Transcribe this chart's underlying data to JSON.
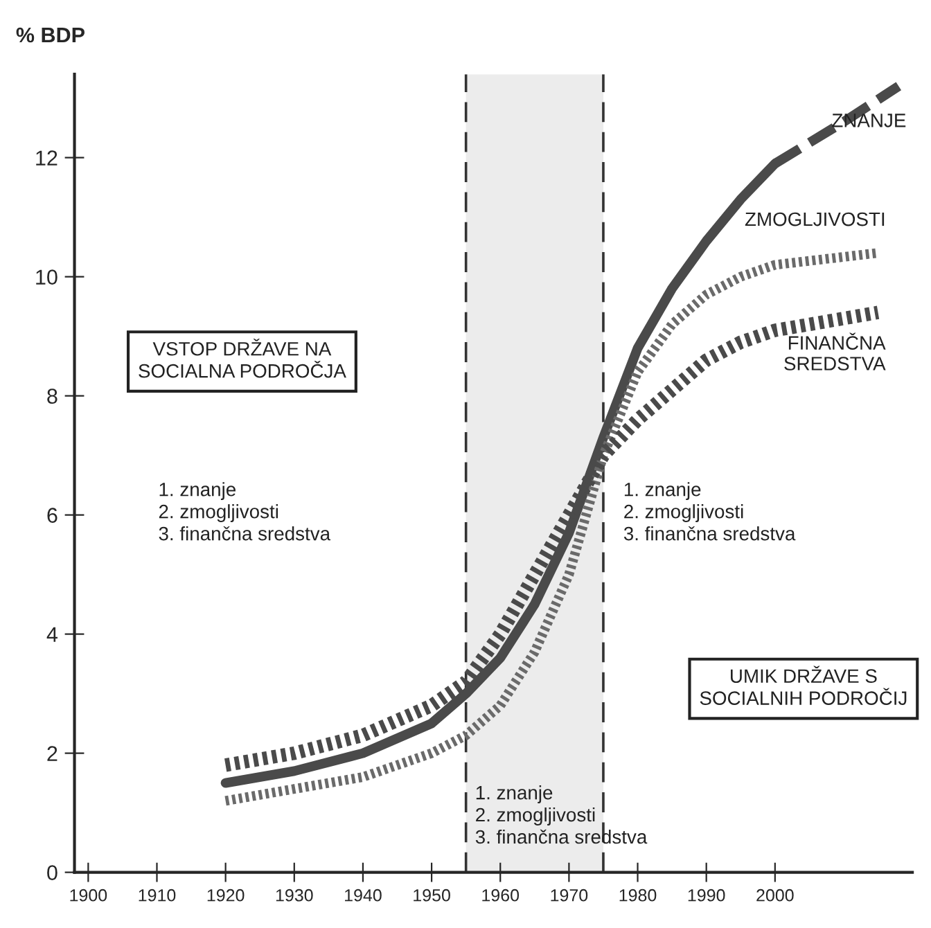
{
  "chart_data": {
    "type": "line",
    "ylabel": "% BDP",
    "xlim": [
      1898,
      2020
    ],
    "ylim": [
      0,
      13.4
    ],
    "xticks": [
      1900,
      1910,
      1920,
      1930,
      1940,
      1950,
      1960,
      1970,
      1980,
      1990,
      2000
    ],
    "yticks": [
      0,
      2,
      4,
      6,
      8,
      10,
      12
    ],
    "grid": false,
    "legend": false,
    "series": [
      {
        "color": "#4a4a4a",
        "line_style": "solid",
        "x": [
          1920,
          1930,
          1940,
          1950,
          1955,
          1960,
          1965,
          1970,
          1975,
          1980,
          1985,
          1990,
          1995,
          2000
        ],
        "values": [
          1.5,
          1.7,
          2.0,
          2.5,
          3.0,
          3.6,
          4.5,
          5.7,
          7.3,
          8.8,
          9.8,
          10.6,
          11.3,
          11.9
        ]
      },
      {
        "name": "ZNANJE",
        "color": "#4a4a4a",
        "line_style": "dashed",
        "x": [
          2000,
          2010,
          2018
        ],
        "values": [
          11.9,
          12.6,
          13.2
        ]
      },
      {
        "name": "ZMOGLJIVOSTI",
        "color": "#6a6a6a",
        "line_style": "dotted",
        "x": [
          1920,
          1930,
          1940,
          1950,
          1955,
          1960,
          1965,
          1970,
          1975,
          1980,
          1985,
          1990,
          1995,
          2000,
          2015
        ],
        "values": [
          1.2,
          1.4,
          1.6,
          2.0,
          2.3,
          2.8,
          3.7,
          5.0,
          7.0,
          8.4,
          9.2,
          9.7,
          10.0,
          10.2,
          10.4
        ]
      },
      {
        "name": "FINANČNA\nSREDSTVA",
        "color": "#4a4a4a",
        "line_style": "dotted",
        "x": [
          1920,
          1930,
          1940,
          1950,
          1955,
          1960,
          1965,
          1970,
          1975,
          1980,
          1985,
          1990,
          1995,
          2000,
          2015
        ],
        "values": [
          1.8,
          2.0,
          2.3,
          2.8,
          3.2,
          4.0,
          5.0,
          6.0,
          7.0,
          7.6,
          8.1,
          8.6,
          8.9,
          9.1,
          9.4
        ]
      }
    ],
    "bands": [
      {
        "axis": "x",
        "from": 1955,
        "to": 1975,
        "color": "#ececec"
      }
    ],
    "ref_lines": [
      {
        "axis": "x",
        "value": 1955,
        "line_style": "dashed",
        "color": "#333333"
      },
      {
        "axis": "x",
        "value": 1975,
        "line_style": "dashed",
        "color": "#333333"
      }
    ],
    "annotations": [
      "VSTOP DRŽAVE NA\nSOCIALNA PODROČJA",
      "1. znanje\n2. zmogljivosti\n3. finančna sredstva",
      "1. znanje\n2. zmogljivosti\n3. finančna sredstva",
      "UMIK DRŽAVE S\nSOCIALNIH PODROČIJ",
      "1. znanje\n2. zmogljivosti\n3. finančna sredstva"
    ]
  }
}
